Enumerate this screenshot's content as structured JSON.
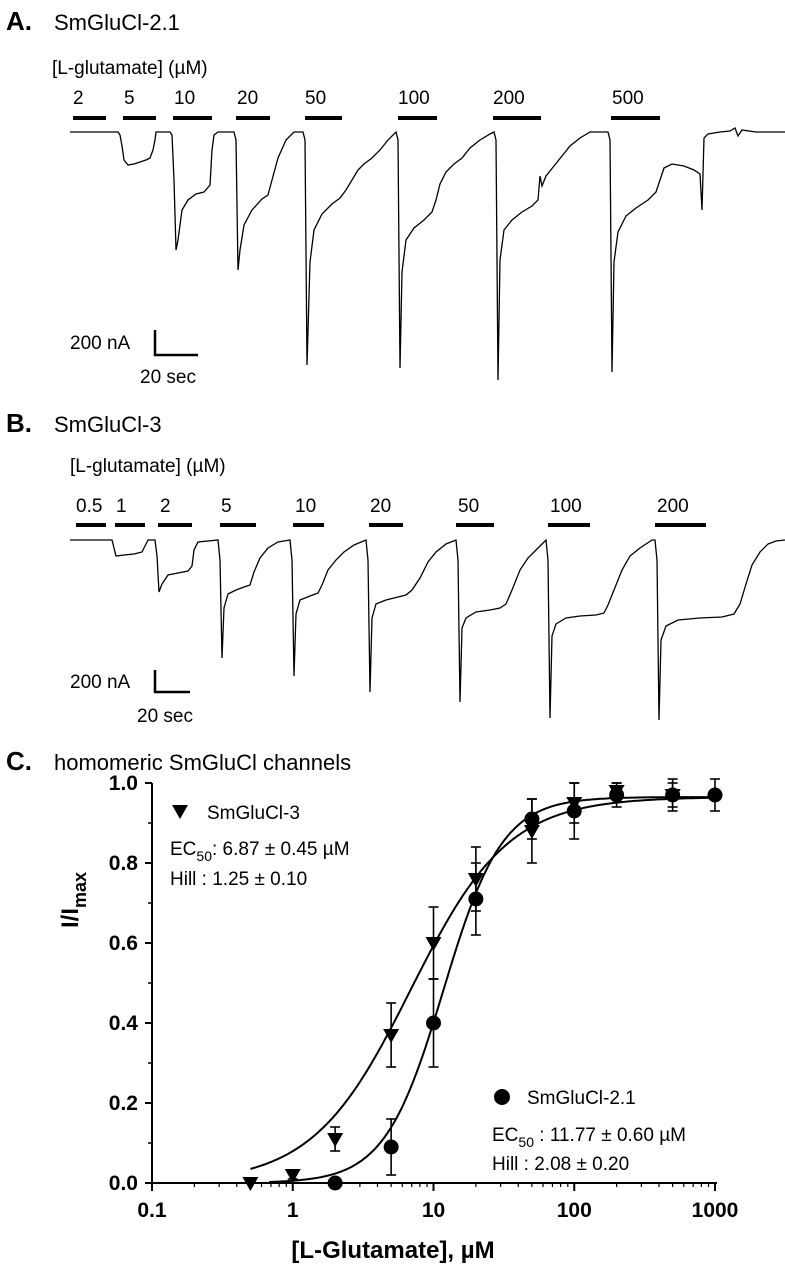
{
  "panel_a": {
    "letter": "A.",
    "title": "SmGluCl-2.1",
    "header": "[L-glutamate] (µM)",
    "concentrations": [
      "2",
      "5",
      "10",
      "20",
      "50",
      "100",
      "200",
      "500"
    ],
    "scale_current": "200 nA",
    "scale_time": "20 sec"
  },
  "panel_b": {
    "letter": "B.",
    "title": "SmGluCl-3",
    "header": "[L-glutamate] (µM)",
    "concentrations": [
      "0.5",
      "1",
      "2",
      "5",
      "10",
      "20",
      "50",
      "100",
      "200"
    ],
    "scale_current": "200 nA",
    "scale_time": "20 sec"
  },
  "panel_c": {
    "letter": "C.",
    "title": "homomeric SmGluCl channels"
  },
  "chart_data": {
    "type": "scatter",
    "xlabel": "[L-Glutamate], µM",
    "ylabel_main": "I/I",
    "ylabel_sub": "max",
    "x_scale": "log",
    "xlim": [
      0.1,
      1000
    ],
    "ylim": [
      0,
      1.0
    ],
    "x_ticks": [
      "0.1",
      "1",
      "10",
      "100",
      "1000"
    ],
    "y_ticks": [
      "0.0",
      "0.2",
      "0.4",
      "0.6",
      "0.8",
      "1.0"
    ],
    "grid": false,
    "series": [
      {
        "name": "SmGluCl-3",
        "marker": "triangle-down",
        "ec50_label": "EC",
        "ec50_sub": "50",
        "ec50_value": ": 6.87 ± 0.45 µM",
        "hill_text": "Hill : 1.25 ± 0.10",
        "fit": {
          "ec50": 6.87,
          "hill": 1.25,
          "top": 0.965,
          "bottom": 0.0
        },
        "x": [
          0.5,
          1,
          2,
          5,
          10,
          20,
          50,
          100,
          200,
          500
        ],
        "y": [
          0.0,
          0.02,
          0.11,
          0.37,
          0.6,
          0.76,
          0.88,
          0.95,
          0.98,
          0.97
        ],
        "err": [
          0.0,
          0.01,
          0.03,
          0.08,
          0.09,
          0.08,
          0.08,
          0.05,
          0.02,
          0.03
        ]
      },
      {
        "name": "SmGluCl-2.1",
        "marker": "circle",
        "ec50_label": "EC",
        "ec50_sub": "50",
        "ec50_value": " : 11.77 ± 0.60 µM",
        "hill_text": "Hill : 2.08 ± 0.20",
        "fit": {
          "ec50": 11.77,
          "hill": 2.08,
          "top": 0.965,
          "bottom": 0.0
        },
        "x": [
          2,
          5,
          10,
          20,
          50,
          100,
          200,
          500,
          1000
        ],
        "y": [
          0.0,
          0.09,
          0.4,
          0.71,
          0.91,
          0.93,
          0.97,
          0.97,
          0.97
        ],
        "err": [
          0.0,
          0.07,
          0.11,
          0.09,
          0.05,
          0.07,
          0.03,
          0.04,
          0.04
        ]
      }
    ]
  }
}
